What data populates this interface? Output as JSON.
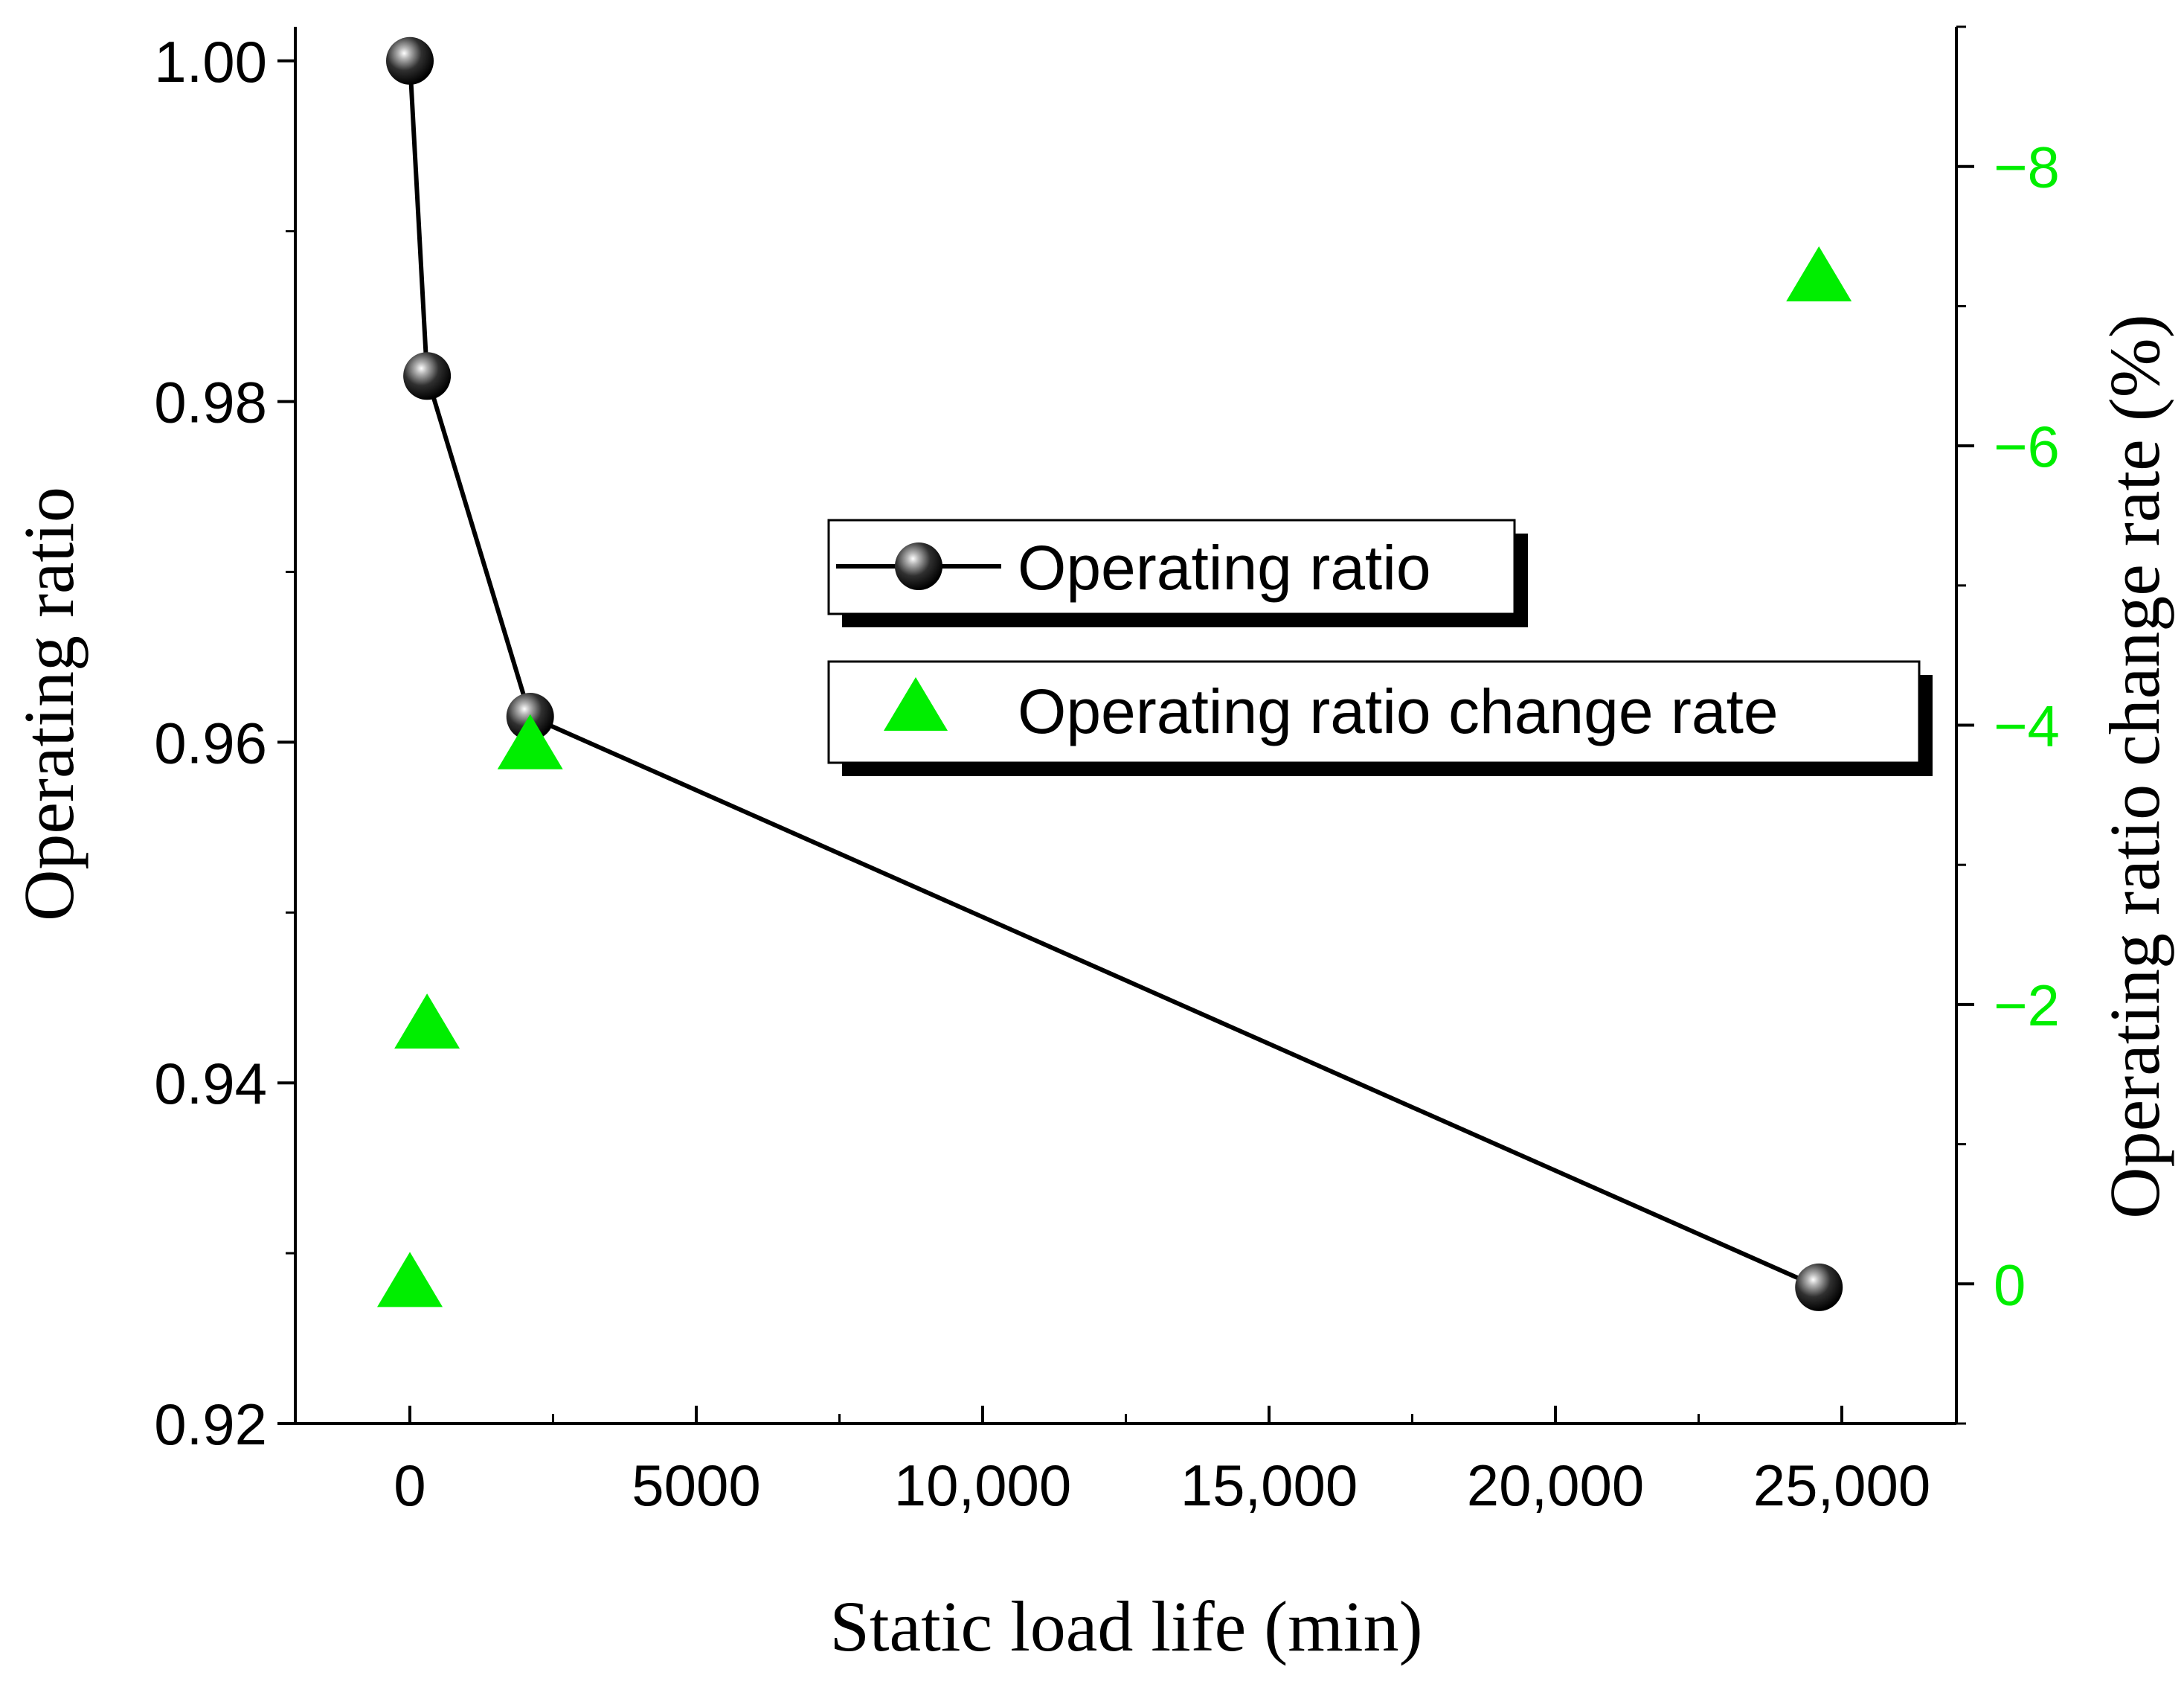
{
  "chart_data": {
    "type": "line",
    "xlabel": "Static load life (min)",
    "ylabel": "Operating ratio",
    "y2label": "Operating ratio change rate (%)",
    "xlim": [
      -2000,
      27000
    ],
    "ylim": [
      0.92,
      1.002
    ],
    "y2lim": [
      1.0,
      -9.0
    ],
    "x_ticks": [
      0,
      5000,
      10000,
      15000,
      20000,
      25000
    ],
    "x_tick_labels": [
      "0",
      "5000",
      "10,000",
      "15,000",
      "20,000",
      "25,000"
    ],
    "y_ticks": [
      0.92,
      0.94,
      0.96,
      0.98,
      1.0
    ],
    "y_tick_labels": [
      "0.92",
      "0.94",
      "0.96",
      "0.98",
      "1.00"
    ],
    "y2_ticks": [
      0,
      -2,
      -4,
      -6,
      -8
    ],
    "y2_tick_labels": [
      "0",
      "−2",
      "−4",
      "−6",
      "−8"
    ],
    "colors": {
      "ratio": "#000000",
      "rate": "#00ee00"
    },
    "series": [
      {
        "name": "Operating ratio",
        "axis": "left",
        "marker": "sphere",
        "line": true,
        "x": [
          0,
          300,
          2100,
          24600
        ],
        "values": [
          1.0,
          0.9815,
          0.9615,
          0.928
        ]
      },
      {
        "name": "Operating ratio change rate",
        "axis": "right",
        "marker": "triangle",
        "line": false,
        "x": [
          0,
          300,
          2100,
          24600
        ],
        "values": [
          0,
          -1.85,
          -3.85,
          -7.2
        ]
      }
    ],
    "legend": [
      {
        "label": "Operating ratio"
      },
      {
        "label": "Operating ratio change rate"
      }
    ]
  }
}
